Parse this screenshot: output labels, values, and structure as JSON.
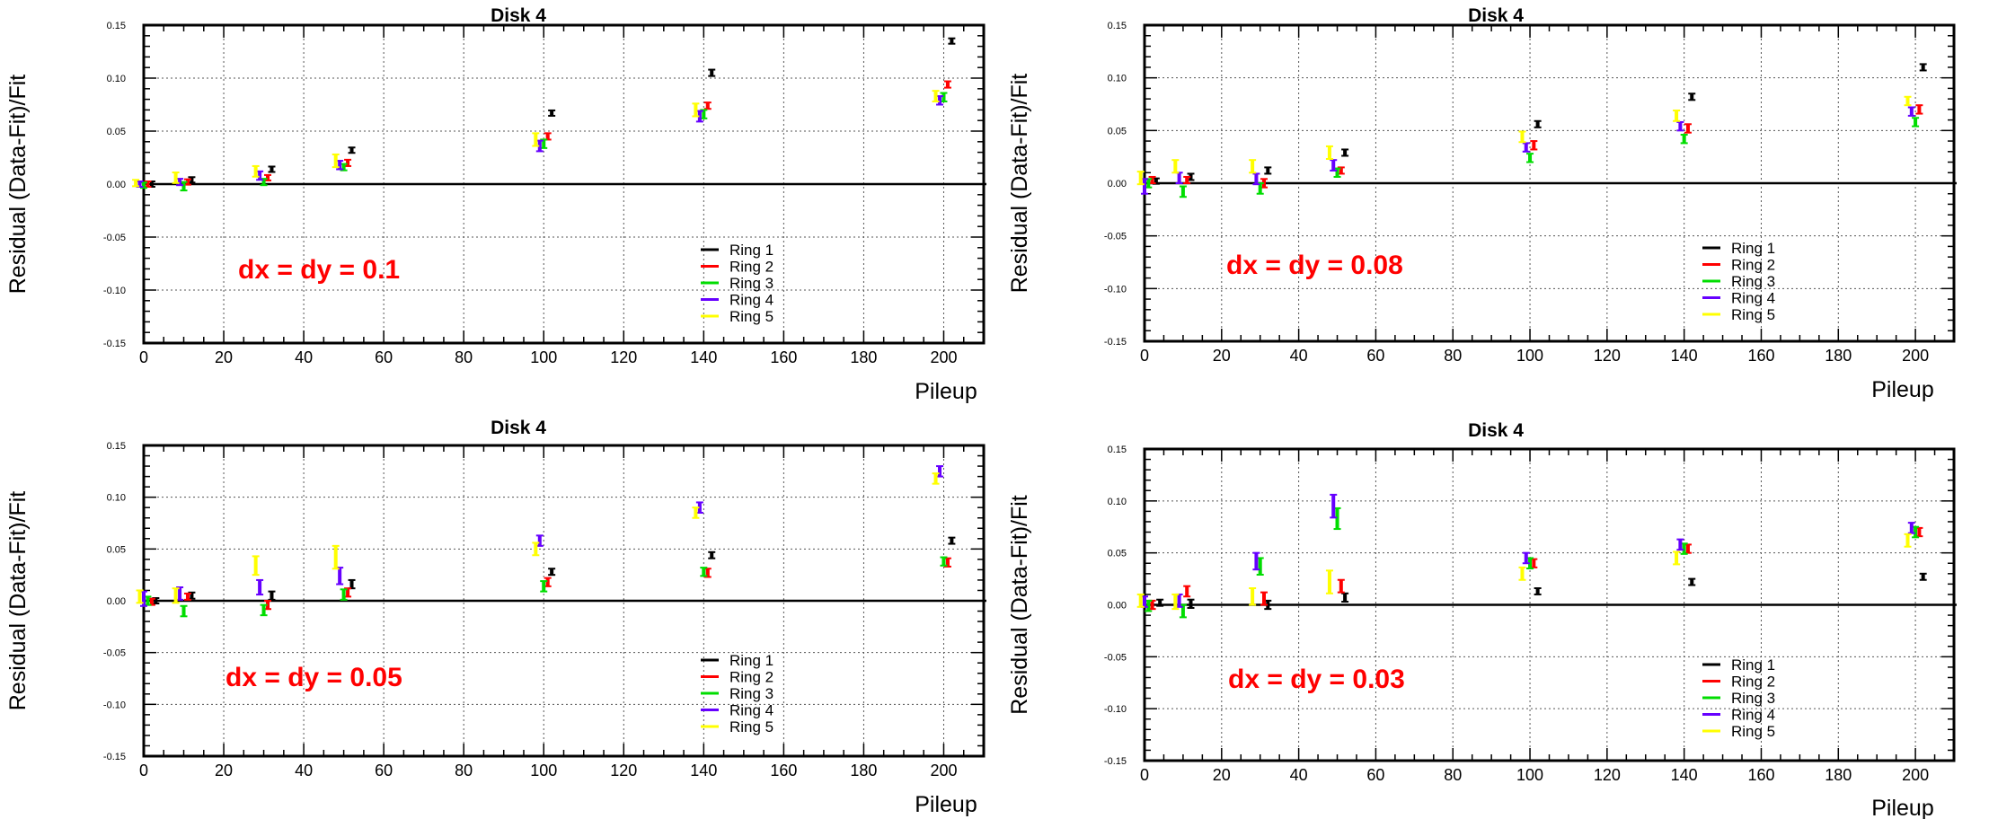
{
  "chart_data": [
    {
      "type": "scatter",
      "title": "Disk 4",
      "xlabel": "Pileup",
      "ylabel": "Residual  (Data-Fit)/Fit",
      "annotation": "dx = dy = 0.1",
      "xlim": [
        0,
        210
      ],
      "ylim": [
        -0.15,
        0.15
      ],
      "xticks": [
        "0",
        "20",
        "40",
        "60",
        "80",
        "100",
        "120",
        "140",
        "160",
        "180",
        "200"
      ],
      "yticks": [
        "-0.15",
        "-0.10",
        "-0.05",
        "0.00",
        "0.05",
        "0.10",
        "0.15"
      ],
      "grid": true,
      "legend_position": "bottom-right",
      "series": [
        {
          "name": "Ring 1",
          "color": "#000000",
          "x": [
            2,
            12,
            32,
            52,
            102,
            142,
            202
          ],
          "y": [
            0.0,
            0.004,
            0.014,
            0.032,
            0.067,
            0.105,
            0.135
          ],
          "err": [
            0.001,
            0.002,
            0.002,
            0.002,
            0.002,
            0.003,
            0.002
          ]
        },
        {
          "name": "Ring 2",
          "color": "#ff0000",
          "x": [
            1,
            11,
            31,
            51,
            101,
            141,
            201
          ],
          "y": [
            0.0,
            0.002,
            0.006,
            0.02,
            0.045,
            0.074,
            0.094
          ],
          "err": [
            0.001,
            0.002,
            0.002,
            0.003,
            0.003,
            0.003,
            0.003
          ]
        },
        {
          "name": "Ring 3",
          "color": "#00dd00",
          "x": [
            0,
            10,
            30,
            50,
            100,
            140,
            200
          ],
          "y": [
            -0.001,
            -0.002,
            0.002,
            0.016,
            0.038,
            0.066,
            0.082
          ],
          "err": [
            0.001,
            0.004,
            0.003,
            0.003,
            0.004,
            0.004,
            0.004
          ]
        },
        {
          "name": "Ring 4",
          "color": "#6600ff",
          "x": [
            -1,
            9,
            29,
            49,
            99,
            139,
            199
          ],
          "y": [
            0.0,
            0.002,
            0.008,
            0.018,
            0.036,
            0.064,
            0.079
          ],
          "err": [
            0.002,
            0.003,
            0.004,
            0.004,
            0.005,
            0.005,
            0.004
          ]
        },
        {
          "name": "Ring 5",
          "color": "#ffff00",
          "x": [
            -2,
            8,
            28,
            48,
            98,
            138,
            198
          ],
          "y": [
            0.001,
            0.006,
            0.012,
            0.022,
            0.042,
            0.07,
            0.083
          ],
          "err": [
            0.003,
            0.005,
            0.005,
            0.006,
            0.006,
            0.006,
            0.005
          ]
        }
      ]
    },
    {
      "type": "scatter",
      "title": "Disk 4",
      "xlabel": "Pileup",
      "ylabel": "Residual  (Data-Fit)/Fit",
      "annotation": "dx = dy = 0.08",
      "xlim": [
        0,
        210
      ],
      "ylim": [
        -0.15,
        0.15
      ],
      "xticks": [
        "0",
        "20",
        "40",
        "60",
        "80",
        "100",
        "120",
        "140",
        "160",
        "180",
        "200"
      ],
      "yticks": [
        "-0.15",
        "-0.10",
        "-0.05",
        "0.00",
        "0.05",
        "0.10",
        "0.15"
      ],
      "grid": true,
      "legend_position": "bottom-right",
      "series": [
        {
          "name": "Ring 1",
          "color": "#000000",
          "x": [
            3,
            12,
            32,
            52,
            102,
            142,
            202
          ],
          "y": [
            0.002,
            0.006,
            0.012,
            0.029,
            0.056,
            0.082,
            0.11
          ],
          "err": [
            0.002,
            0.003,
            0.003,
            0.003,
            0.003,
            0.003,
            0.003
          ]
        },
        {
          "name": "Ring 2",
          "color": "#ff0000",
          "x": [
            2,
            11,
            31,
            51,
            101,
            141,
            201
          ],
          "y": [
            0.003,
            0.003,
            0.0,
            0.012,
            0.036,
            0.052,
            0.07
          ],
          "err": [
            0.003,
            0.003,
            0.004,
            0.003,
            0.004,
            0.004,
            0.004
          ]
        },
        {
          "name": "Ring 3",
          "color": "#00dd00",
          "x": [
            1,
            10,
            30,
            50,
            100,
            140,
            200
          ],
          "y": [
            0.0,
            -0.008,
            -0.005,
            0.01,
            0.024,
            0.042,
            0.058
          ],
          "err": [
            0.004,
            0.005,
            0.005,
            0.004,
            0.004,
            0.004,
            0.004
          ]
        },
        {
          "name": "Ring 4",
          "color": "#6600ff",
          "x": [
            0,
            9,
            29,
            49,
            99,
            139,
            199
          ],
          "y": [
            -0.003,
            0.005,
            0.004,
            0.017,
            0.034,
            0.054,
            0.068
          ],
          "err": [
            0.007,
            0.005,
            0.005,
            0.005,
            0.004,
            0.004,
            0.004
          ]
        },
        {
          "name": "Ring 5",
          "color": "#ffff00",
          "x": [
            -1,
            8,
            28,
            48,
            98,
            138,
            198
          ],
          "y": [
            0.005,
            0.016,
            0.016,
            0.029,
            0.044,
            0.064,
            0.078
          ],
          "err": [
            0.006,
            0.006,
            0.006,
            0.006,
            0.005,
            0.005,
            0.004
          ]
        }
      ]
    },
    {
      "type": "scatter",
      "title": "Disk 4",
      "xlabel": "Pileup",
      "ylabel": "Residual  (Data-Fit)/Fit",
      "annotation": "dx = dy = 0.05",
      "xlim": [
        0,
        210
      ],
      "ylim": [
        -0.15,
        0.15
      ],
      "xticks": [
        "0",
        "20",
        "40",
        "60",
        "80",
        "100",
        "120",
        "140",
        "160",
        "180",
        "200"
      ],
      "yticks": [
        "-0.15",
        "-0.10",
        "-0.05",
        "0.00",
        "0.05",
        "0.10",
        "0.15"
      ],
      "grid": true,
      "legend_position": "bottom-right",
      "series": [
        {
          "name": "Ring 1",
          "color": "#000000",
          "x": [
            3,
            12,
            32,
            52,
            102,
            142,
            202
          ],
          "y": [
            0.0,
            0.005,
            0.005,
            0.016,
            0.028,
            0.044,
            0.058
          ],
          "err": [
            0.002,
            0.003,
            0.004,
            0.004,
            0.003,
            0.003,
            0.003
          ]
        },
        {
          "name": "Ring 2",
          "color": "#ff0000",
          "x": [
            2,
            11,
            31,
            51,
            101,
            141,
            201
          ],
          "y": [
            -0.001,
            0.004,
            -0.004,
            0.008,
            0.018,
            0.027,
            0.037
          ],
          "err": [
            0.003,
            0.003,
            0.004,
            0.004,
            0.004,
            0.004,
            0.004
          ]
        },
        {
          "name": "Ring 3",
          "color": "#00dd00",
          "x": [
            1,
            10,
            30,
            50,
            100,
            140,
            200
          ],
          "y": [
            0.0,
            -0.01,
            -0.009,
            0.006,
            0.014,
            0.028,
            0.038
          ],
          "err": [
            0.004,
            0.005,
            0.005,
            0.005,
            0.005,
            0.004,
            0.004
          ]
        },
        {
          "name": "Ring 4",
          "color": "#6600ff",
          "x": [
            0,
            9,
            29,
            49,
            99,
            139,
            199
          ],
          "y": [
            0.002,
            0.007,
            0.013,
            0.024,
            0.058,
            0.09,
            0.125
          ],
          "err": [
            0.007,
            0.006,
            0.007,
            0.008,
            0.005,
            0.005,
            0.005
          ]
        },
        {
          "name": "Ring 5",
          "color": "#ffff00",
          "x": [
            -1,
            8,
            28,
            48,
            98,
            138,
            198
          ],
          "y": [
            0.004,
            0.005,
            0.034,
            0.042,
            0.05,
            0.085,
            0.118
          ],
          "err": [
            0.006,
            0.007,
            0.009,
            0.011,
            0.006,
            0.005,
            0.005
          ]
        }
      ]
    },
    {
      "type": "scatter",
      "title": "Disk 4",
      "xlabel": "Pileup",
      "ylabel": "Residual  (Data-Fit)/Fit",
      "annotation": "dx = dy = 0.03",
      "xlim": [
        0,
        210
      ],
      "ylim": [
        -0.15,
        0.15
      ],
      "xticks": [
        "0",
        "20",
        "40",
        "60",
        "80",
        "100",
        "120",
        "140",
        "160",
        "180",
        "200"
      ],
      "yticks": [
        "-0.15",
        "-0.10",
        "-0.05",
        "0.00",
        "0.05",
        "0.10",
        "0.15"
      ],
      "grid": true,
      "legend_position": "bottom-right",
      "series": [
        {
          "name": "Ring 1",
          "color": "#000000",
          "x": [
            4,
            12,
            32,
            52,
            102,
            142,
            202
          ],
          "y": [
            0.002,
            0.001,
            0.0,
            0.007,
            0.013,
            0.022,
            0.027
          ],
          "err": [
            0.003,
            0.004,
            0.004,
            0.004,
            0.003,
            0.003,
            0.003
          ]
        },
        {
          "name": "Ring 2",
          "color": "#ff0000",
          "x": [
            2,
            11,
            31,
            51,
            101,
            141,
            201
          ],
          "y": [
            0.0,
            0.013,
            0.006,
            0.018,
            0.04,
            0.054,
            0.07
          ],
          "err": [
            0.004,
            0.005,
            0.006,
            0.006,
            0.004,
            0.004,
            0.004
          ]
        },
        {
          "name": "Ring 3",
          "color": "#00dd00",
          "x": [
            1,
            10,
            30,
            50,
            100,
            140,
            200
          ],
          "y": [
            -0.001,
            -0.006,
            0.037,
            0.083,
            0.04,
            0.054,
            0.07
          ],
          "err": [
            0.005,
            0.006,
            0.008,
            0.01,
            0.005,
            0.005,
            0.005
          ]
        },
        {
          "name": "Ring 4",
          "color": "#6600ff",
          "x": [
            0,
            9,
            29,
            49,
            99,
            139,
            199
          ],
          "y": [
            0.003,
            0.004,
            0.042,
            0.095,
            0.045,
            0.058,
            0.074
          ],
          "err": [
            0.005,
            0.006,
            0.008,
            0.011,
            0.005,
            0.005,
            0.005
          ]
        },
        {
          "name": "Ring 5",
          "color": "#ffff00",
          "x": [
            -1,
            8,
            28,
            48,
            98,
            138,
            198
          ],
          "y": [
            0.004,
            0.003,
            0.008,
            0.022,
            0.03,
            0.045,
            0.062
          ],
          "err": [
            0.006,
            0.007,
            0.008,
            0.011,
            0.006,
            0.006,
            0.006
          ]
        }
      ]
    }
  ]
}
